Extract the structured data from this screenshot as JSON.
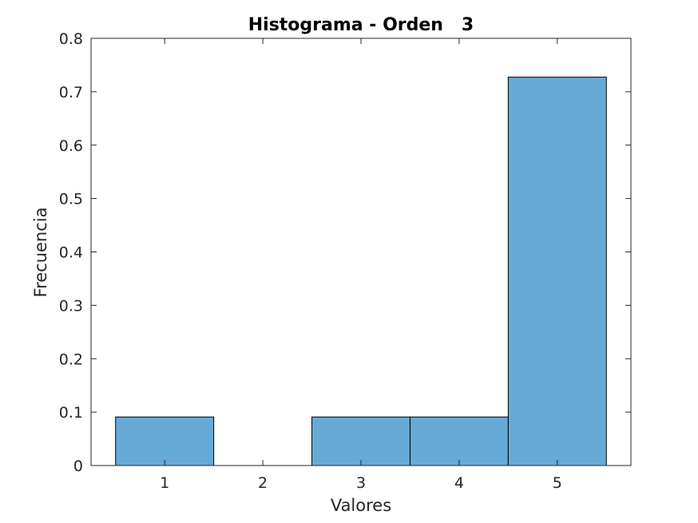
{
  "chart_data": {
    "type": "bar",
    "title": "Histograma - Orden   3",
    "xlabel": "Valores",
    "ylabel": "Frecuencia",
    "categories": [
      "1",
      "2",
      "3",
      "4",
      "5"
    ],
    "x": [
      1,
      2,
      3,
      4,
      5
    ],
    "values": [
      0.0909,
      0,
      0.0909,
      0.0909,
      0.7273
    ],
    "xlim": [
      0.25,
      5.75
    ],
    "ylim": [
      0,
      0.8
    ],
    "yticks": [
      0,
      0.1,
      0.2,
      0.3,
      0.4,
      0.5,
      0.6,
      0.7,
      0.8
    ],
    "ytick_labels": [
      "0",
      "0.1",
      "0.2",
      "0.3",
      "0.4",
      "0.5",
      "0.6",
      "0.7",
      "0.8"
    ],
    "xticks": [
      1,
      2,
      3,
      4,
      5
    ],
    "xtick_labels": [
      "1",
      "2",
      "3",
      "4",
      "5"
    ],
    "grid": false,
    "legend": "none",
    "bar_color": "#66aad8",
    "edge_color": "#000000"
  }
}
